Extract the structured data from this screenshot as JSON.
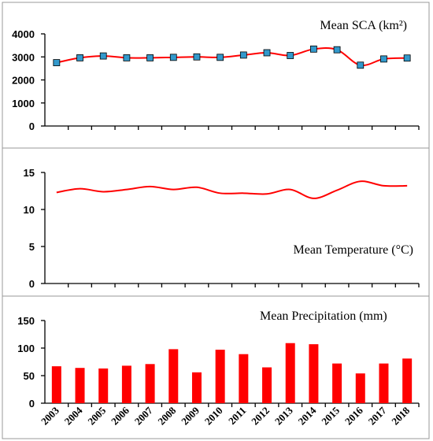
{
  "chart_data": [
    {
      "type": "line",
      "title": "Mean SCA (km²)",
      "x": [
        "2003",
        "2004",
        "2005",
        "2006",
        "2007",
        "2008",
        "2009",
        "2010",
        "2011",
        "2012",
        "2013",
        "2014",
        "2015",
        "2016",
        "2017",
        "2018"
      ],
      "series": [
        {
          "values": [
            2750,
            2960,
            3040,
            2960,
            2960,
            2980,
            3000,
            2980,
            3080,
            3180,
            3060,
            3340,
            3310,
            2640,
            2910,
            2950
          ]
        }
      ],
      "ylim": [
        0,
        4000
      ],
      "yticks": [
        "0",
        "1000",
        "2000",
        "3000",
        "4000"
      ],
      "markers": true,
      "color": "#ff0000",
      "marker_color": "#3399cc"
    },
    {
      "type": "line",
      "title": "Mean Temperature  (°C)",
      "x": [
        "2003",
        "2004",
        "2005",
        "2006",
        "2007",
        "2008",
        "2009",
        "2010",
        "2011",
        "2012",
        "2013",
        "2014",
        "2015",
        "2016",
        "2017",
        "2018"
      ],
      "series": [
        {
          "values": [
            12.3,
            12.8,
            12.4,
            12.7,
            13.1,
            12.7,
            13.0,
            12.2,
            12.2,
            12.1,
            12.7,
            11.5,
            12.6,
            13.8,
            13.2,
            13.2
          ]
        }
      ],
      "ylim": [
        0,
        15
      ],
      "yticks": [
        "0",
        "5",
        "10",
        "15"
      ],
      "markers": false,
      "color": "#ff0000"
    },
    {
      "type": "bar",
      "title": "Mean Precipitation (mm)",
      "categories": [
        "2003",
        "2004",
        "2005",
        "2006",
        "2007",
        "2008",
        "2009",
        "2010",
        "2011",
        "2012",
        "2013",
        "2014",
        "2015",
        "2016",
        "2017",
        "2018"
      ],
      "values": [
        67,
        64,
        63,
        68,
        71,
        98,
        56,
        97,
        89,
        65,
        109,
        107,
        72,
        54,
        72,
        81
      ],
      "ylim": [
        0,
        150
      ],
      "yticks": [
        "0",
        "50",
        "100",
        "150"
      ],
      "color": "#ff0000"
    }
  ]
}
